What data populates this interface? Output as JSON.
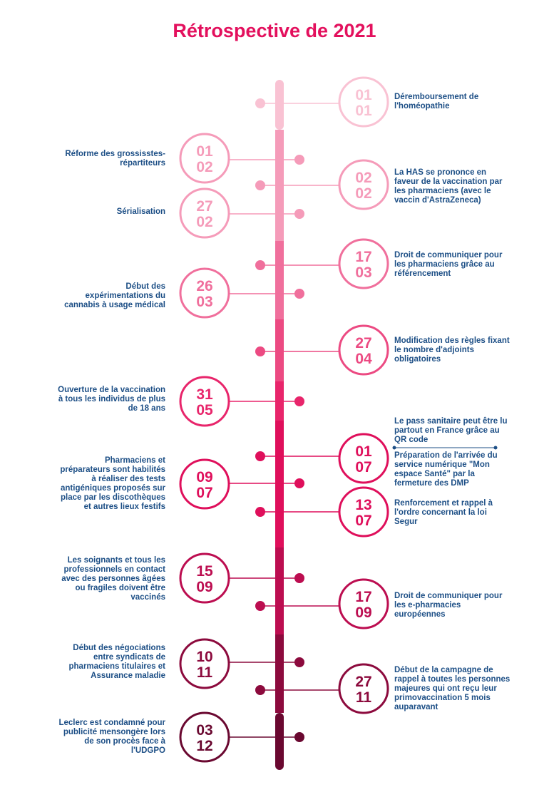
{
  "title": "Rétrospective de 2021",
  "colors": {
    "text": "#1d4f86",
    "title": "#e3105d"
  },
  "events": [
    {
      "day": "01",
      "month": "01",
      "side": "right",
      "color": "#f9c2d3",
      "label": "Déremboursement de l'homéopathie"
    },
    {
      "day": "01",
      "month": "02",
      "side": "left",
      "color": "#f59bb9",
      "label": "Réforme des grossisstes-répartiteurs"
    },
    {
      "day": "02",
      "month": "02",
      "side": "right",
      "color": "#f59bb9",
      "label": "La HAS se prononce en faveur de la vaccination par les pharmaciens (avec le vaccin d'AstraZeneca)"
    },
    {
      "day": "27",
      "month": "02",
      "side": "left",
      "color": "#f59bb9",
      "label": "Sérialisation"
    },
    {
      "day": "17",
      "month": "03",
      "side": "right",
      "color": "#f06f9c",
      "label": "Droit de communiquer pour les pharmaciens grâce au référencement"
    },
    {
      "day": "26",
      "month": "03",
      "side": "left",
      "color": "#f06f9c",
      "label": "Début des expérimentations du cannabis à usage médical"
    },
    {
      "day": "27",
      "month": "04",
      "side": "right",
      "color": "#ec4a82",
      "label": "Modification des règles fixant le nombre d'adjoints obligatoires"
    },
    {
      "day": "31",
      "month": "05",
      "side": "left",
      "color": "#e8256b",
      "label": "Ouverture de la vaccination à tous les individus de plus de 18 ans"
    },
    {
      "day": "01",
      "month": "07",
      "side": "right",
      "color": "#df0f5b",
      "label": "Le pass sanitaire peut être lu partout en France grâce au QR code",
      "label2": "Préparation de l'arrivée du service numérique \"Mon espace Santé\" par la fermeture des DMP"
    },
    {
      "day": "09",
      "month": "07",
      "side": "left",
      "color": "#df0f5b",
      "label": "Pharmaciens et préparateurs sont habilités à réaliser des tests antigéniques proposés sur place par les discothèques et autres lieux festifs"
    },
    {
      "day": "13",
      "month": "07",
      "side": "right",
      "color": "#df0f5b",
      "label": "Renforcement et rappel à l'ordre concernant  la loi Segur"
    },
    {
      "day": "15",
      "month": "09",
      "side": "left",
      "color": "#bc0d50",
      "label": "Les soignants et tous les professionnels en contact avec des personnes âgées ou fragiles doivent être vaccinés"
    },
    {
      "day": "17",
      "month": "09",
      "side": "right",
      "color": "#bc0d50",
      "label": "Droit de communiquer pour les e-pharmacies européennes"
    },
    {
      "day": "10",
      "month": "11",
      "side": "left",
      "color": "#8c0a3d",
      "label": "Début des négociations entre syndicats de pharmaciens titulaires et Assurance maladie"
    },
    {
      "day": "27",
      "month": "11",
      "side": "right",
      "color": "#8c0a3d",
      "label": "Début de la campagne de rappel à toutes les personnes majeures qui ont reçu leur primovaccination 5 mois auparavant"
    },
    {
      "day": "03",
      "month": "12",
      "side": "left",
      "color": "#6a0830",
      "label": "Leclerc est condamné pour publicité mensongère lors de son procès face à l'UDGPO"
    }
  ]
}
